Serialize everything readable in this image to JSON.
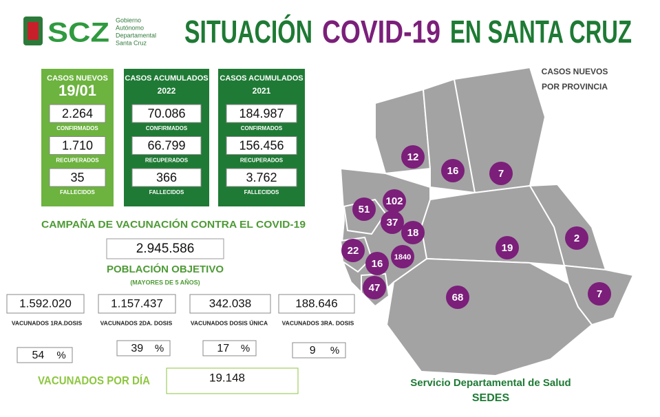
{
  "header": {
    "logo": {
      "abbr": "SCZ",
      "lines": [
        "Gobierno",
        "Autónomo",
        "Departamental",
        "Santa Cruz"
      ]
    },
    "title": {
      "part1": "SITUACIÓN",
      "part2": "COVID-19",
      "part3": "EN SANTA CRUZ"
    }
  },
  "cases": [
    {
      "title": "CASOS NUEVOS",
      "subtitle": "19/01",
      "stats": [
        {
          "value": "2.264",
          "label": "CONFIRMADOS"
        },
        {
          "value": "1.710",
          "label": "RECUPERADOS"
        },
        {
          "value": "35",
          "label": "FALLECIDOS"
        }
      ]
    },
    {
      "title": "CASOS ACUMULADOS",
      "subtitle": "2022",
      "stats": [
        {
          "value": "70.086",
          "label": "CONFIRMADOS"
        },
        {
          "value": "66.799",
          "label": "RECUPERADOS"
        },
        {
          "value": "366",
          "label": "FALLECIDOS"
        }
      ]
    },
    {
      "title": "CASOS ACUMULADOS",
      "subtitle": "2021",
      "stats": [
        {
          "value": "184.987",
          "label": "CONFIRMADOS"
        },
        {
          "value": "156.456",
          "label": "RECUPERADOS"
        },
        {
          "value": "3.762",
          "label": "FALLECIDOS"
        }
      ]
    }
  ],
  "vaccination": {
    "title": "CAMPAÑA DE VACUNACIÓN CONTRA EL COVID-19",
    "target": {
      "value": "2.945.586",
      "label": "POBLACIÓN OBJETIVO",
      "note": "(MAYORES DE 5 AÑOS)"
    },
    "doses": [
      {
        "value": "1.592.020",
        "label": "VACUNADOS 1RA.DOSIS",
        "percent": "54",
        "unit": "%"
      },
      {
        "value": "1.157.437",
        "label": "VACUNADOS 2DA. DOSIS",
        "percent": "39",
        "unit": "%"
      },
      {
        "value": "342.038",
        "label": "VACUNADOS DOSIS ÚNICA",
        "percent": "17",
        "unit": "%"
      },
      {
        "value": "188.646",
        "label": "VACUNADOS 3RA. DOSIS",
        "percent": "9",
        "unit": "%"
      }
    ],
    "daily": {
      "label": "VACUNADOS POR DÍA",
      "value": "19.148"
    }
  },
  "map": {
    "title": [
      "CASOS NUEVOS",
      "POR PROVINCIA"
    ],
    "provinces": [
      {
        "cases": "12"
      },
      {
        "cases": "16"
      },
      {
        "cases": "7"
      },
      {
        "cases": "102"
      },
      {
        "cases": "51"
      },
      {
        "cases": "37"
      },
      {
        "cases": "18"
      },
      {
        "cases": "22"
      },
      {
        "cases": "16"
      },
      {
        "cases": "1840"
      },
      {
        "cases": "19"
      },
      {
        "cases": "2"
      },
      {
        "cases": "7"
      },
      {
        "cases": "47"
      },
      {
        "cases": "68"
      }
    ]
  },
  "footer": {
    "line1": "Servicio Departamental de Salud",
    "line2": "SEDES"
  }
}
